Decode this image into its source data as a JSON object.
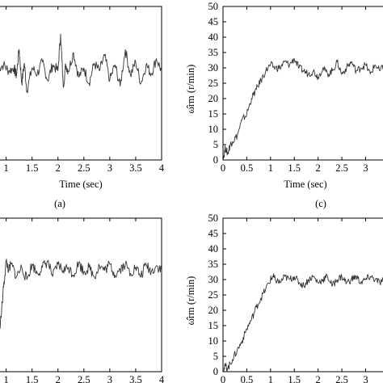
{
  "chart_data": [
    {
      "id": "a",
      "type": "line",
      "caption": "(a)",
      "xlabel": "Time (sec)",
      "ylabel": "",
      "xlim": [
        0.85,
        4
      ],
      "xticks": [
        "1",
        "1.5",
        "2",
        "2.5",
        "3",
        "3.5",
        "4"
      ],
      "yticks": [],
      "series": [
        {
          "x": [
            0.85,
            0.95,
            1.05,
            1.15,
            1.2,
            1.25,
            1.3,
            1.35,
            1.4,
            1.5,
            1.6,
            1.7,
            1.8,
            1.9,
            2.0,
            2.05,
            2.1,
            2.15,
            2.2,
            2.3,
            2.4,
            2.5,
            2.6,
            2.7,
            2.8,
            2.9,
            3.0,
            3.1,
            3.2,
            3.3,
            3.4,
            3.5,
            3.6,
            3.7,
            3.8,
            3.9,
            4.0
          ],
          "y": [
            0.6,
            0.62,
            0.58,
            0.6,
            0.55,
            0.72,
            0.5,
            0.63,
            0.45,
            0.6,
            0.56,
            0.64,
            0.52,
            0.62,
            0.58,
            0.82,
            0.48,
            0.62,
            0.58,
            0.7,
            0.54,
            0.6,
            0.5,
            0.63,
            0.58,
            0.68,
            0.52,
            0.62,
            0.48,
            0.72,
            0.55,
            0.64,
            0.5,
            0.62,
            0.56,
            0.66,
            0.58
          ]
        }
      ]
    },
    {
      "id": "c",
      "type": "line",
      "caption": "(c)",
      "xlabel": "Time (sec)",
      "ylabel": "ω̂rm (r/min)",
      "xlim": [
        0,
        3.4
      ],
      "ylim": [
        0,
        50
      ],
      "xticks": [
        "0",
        "0.5",
        "1",
        "1.5",
        "2",
        "2.5",
        "3"
      ],
      "yticks": [
        "0",
        "5",
        "10",
        "15",
        "20",
        "25",
        "30",
        "35",
        "40",
        "45",
        "50"
      ],
      "series": [
        {
          "x": [
            0.0,
            0.05,
            0.1,
            0.15,
            0.2,
            0.3,
            0.4,
            0.5,
            0.6,
            0.7,
            0.8,
            0.9,
            1.0,
            1.1,
            1.2,
            1.3,
            1.4,
            1.5,
            1.6,
            1.7,
            1.8,
            1.9,
            2.0,
            2.1,
            2.2,
            2.3,
            2.4,
            2.5,
            2.6,
            2.7,
            2.8,
            2.9,
            3.0,
            3.1,
            3.2,
            3.3,
            3.4
          ],
          "y": [
            0,
            4,
            2,
            5,
            6,
            8,
            13,
            15,
            20,
            23,
            26,
            29,
            31,
            30,
            30,
            32,
            31,
            33,
            30,
            29,
            28,
            29,
            27,
            30,
            28,
            29,
            32,
            28,
            30,
            32,
            29,
            30,
            31,
            28,
            31,
            29,
            31
          ]
        }
      ]
    },
    {
      "id": "b",
      "type": "line",
      "caption": "",
      "xlabel": "",
      "ylabel": "",
      "xlim": [
        0.85,
        4
      ],
      "xticks": [
        "1",
        "1.5",
        "2",
        "2.5",
        "3",
        "3.5",
        "4"
      ],
      "yticks": [],
      "series": [
        {
          "x": [
            0.85,
            0.9,
            0.95,
            1.0,
            1.05,
            1.1,
            1.2,
            1.3,
            1.4,
            1.5,
            1.6,
            1.7,
            1.8,
            1.9,
            2.0,
            2.1,
            2.2,
            2.3,
            2.4,
            2.5,
            2.6,
            2.7,
            2.8,
            2.9,
            3.0,
            3.1,
            3.2,
            3.3,
            3.4,
            3.5,
            3.6,
            3.7,
            3.8,
            3.9,
            4.0
          ],
          "y": [
            0.25,
            0.35,
            0.55,
            0.72,
            0.66,
            0.7,
            0.62,
            0.68,
            0.6,
            0.7,
            0.64,
            0.68,
            0.72,
            0.62,
            0.7,
            0.66,
            0.68,
            0.63,
            0.71,
            0.65,
            0.68,
            0.62,
            0.69,
            0.66,
            0.7,
            0.63,
            0.67,
            0.7,
            0.64,
            0.68,
            0.62,
            0.7,
            0.65,
            0.69,
            0.66
          ]
        }
      ]
    },
    {
      "id": "d",
      "type": "line",
      "caption": "",
      "xlabel": "",
      "ylabel": "ω̂rm (r/min)",
      "xlim": [
        0,
        3.4
      ],
      "ylim": [
        0,
        50
      ],
      "xticks": [
        "0",
        "0.5",
        "1",
        "1.5",
        "2",
        "2.5",
        "3"
      ],
      "yticks": [
        "0",
        "5",
        "10",
        "15",
        "20",
        "25",
        "30",
        "35",
        "40",
        "45",
        "50"
      ],
      "series": [
        {
          "x": [
            0.0,
            0.05,
            0.1,
            0.2,
            0.3,
            0.4,
            0.5,
            0.6,
            0.7,
            0.8,
            0.9,
            1.0,
            1.05,
            1.1,
            1.2,
            1.3,
            1.4,
            1.5,
            1.6,
            1.7,
            1.8,
            1.9,
            2.0,
            2.1,
            2.2,
            2.3,
            2.4,
            2.5,
            2.6,
            2.7,
            2.8,
            2.9,
            3.0,
            3.1,
            3.2,
            3.3,
            3.4
          ],
          "y": [
            0,
            2,
            1,
            4,
            7,
            10,
            14,
            17,
            21,
            24,
            27,
            30,
            31,
            30,
            29,
            31,
            30,
            31,
            29,
            28,
            30,
            31,
            29,
            30,
            31,
            28,
            30,
            31,
            29,
            30,
            31,
            29,
            30,
            31,
            30,
            29,
            30
          ]
        }
      ]
    }
  ]
}
